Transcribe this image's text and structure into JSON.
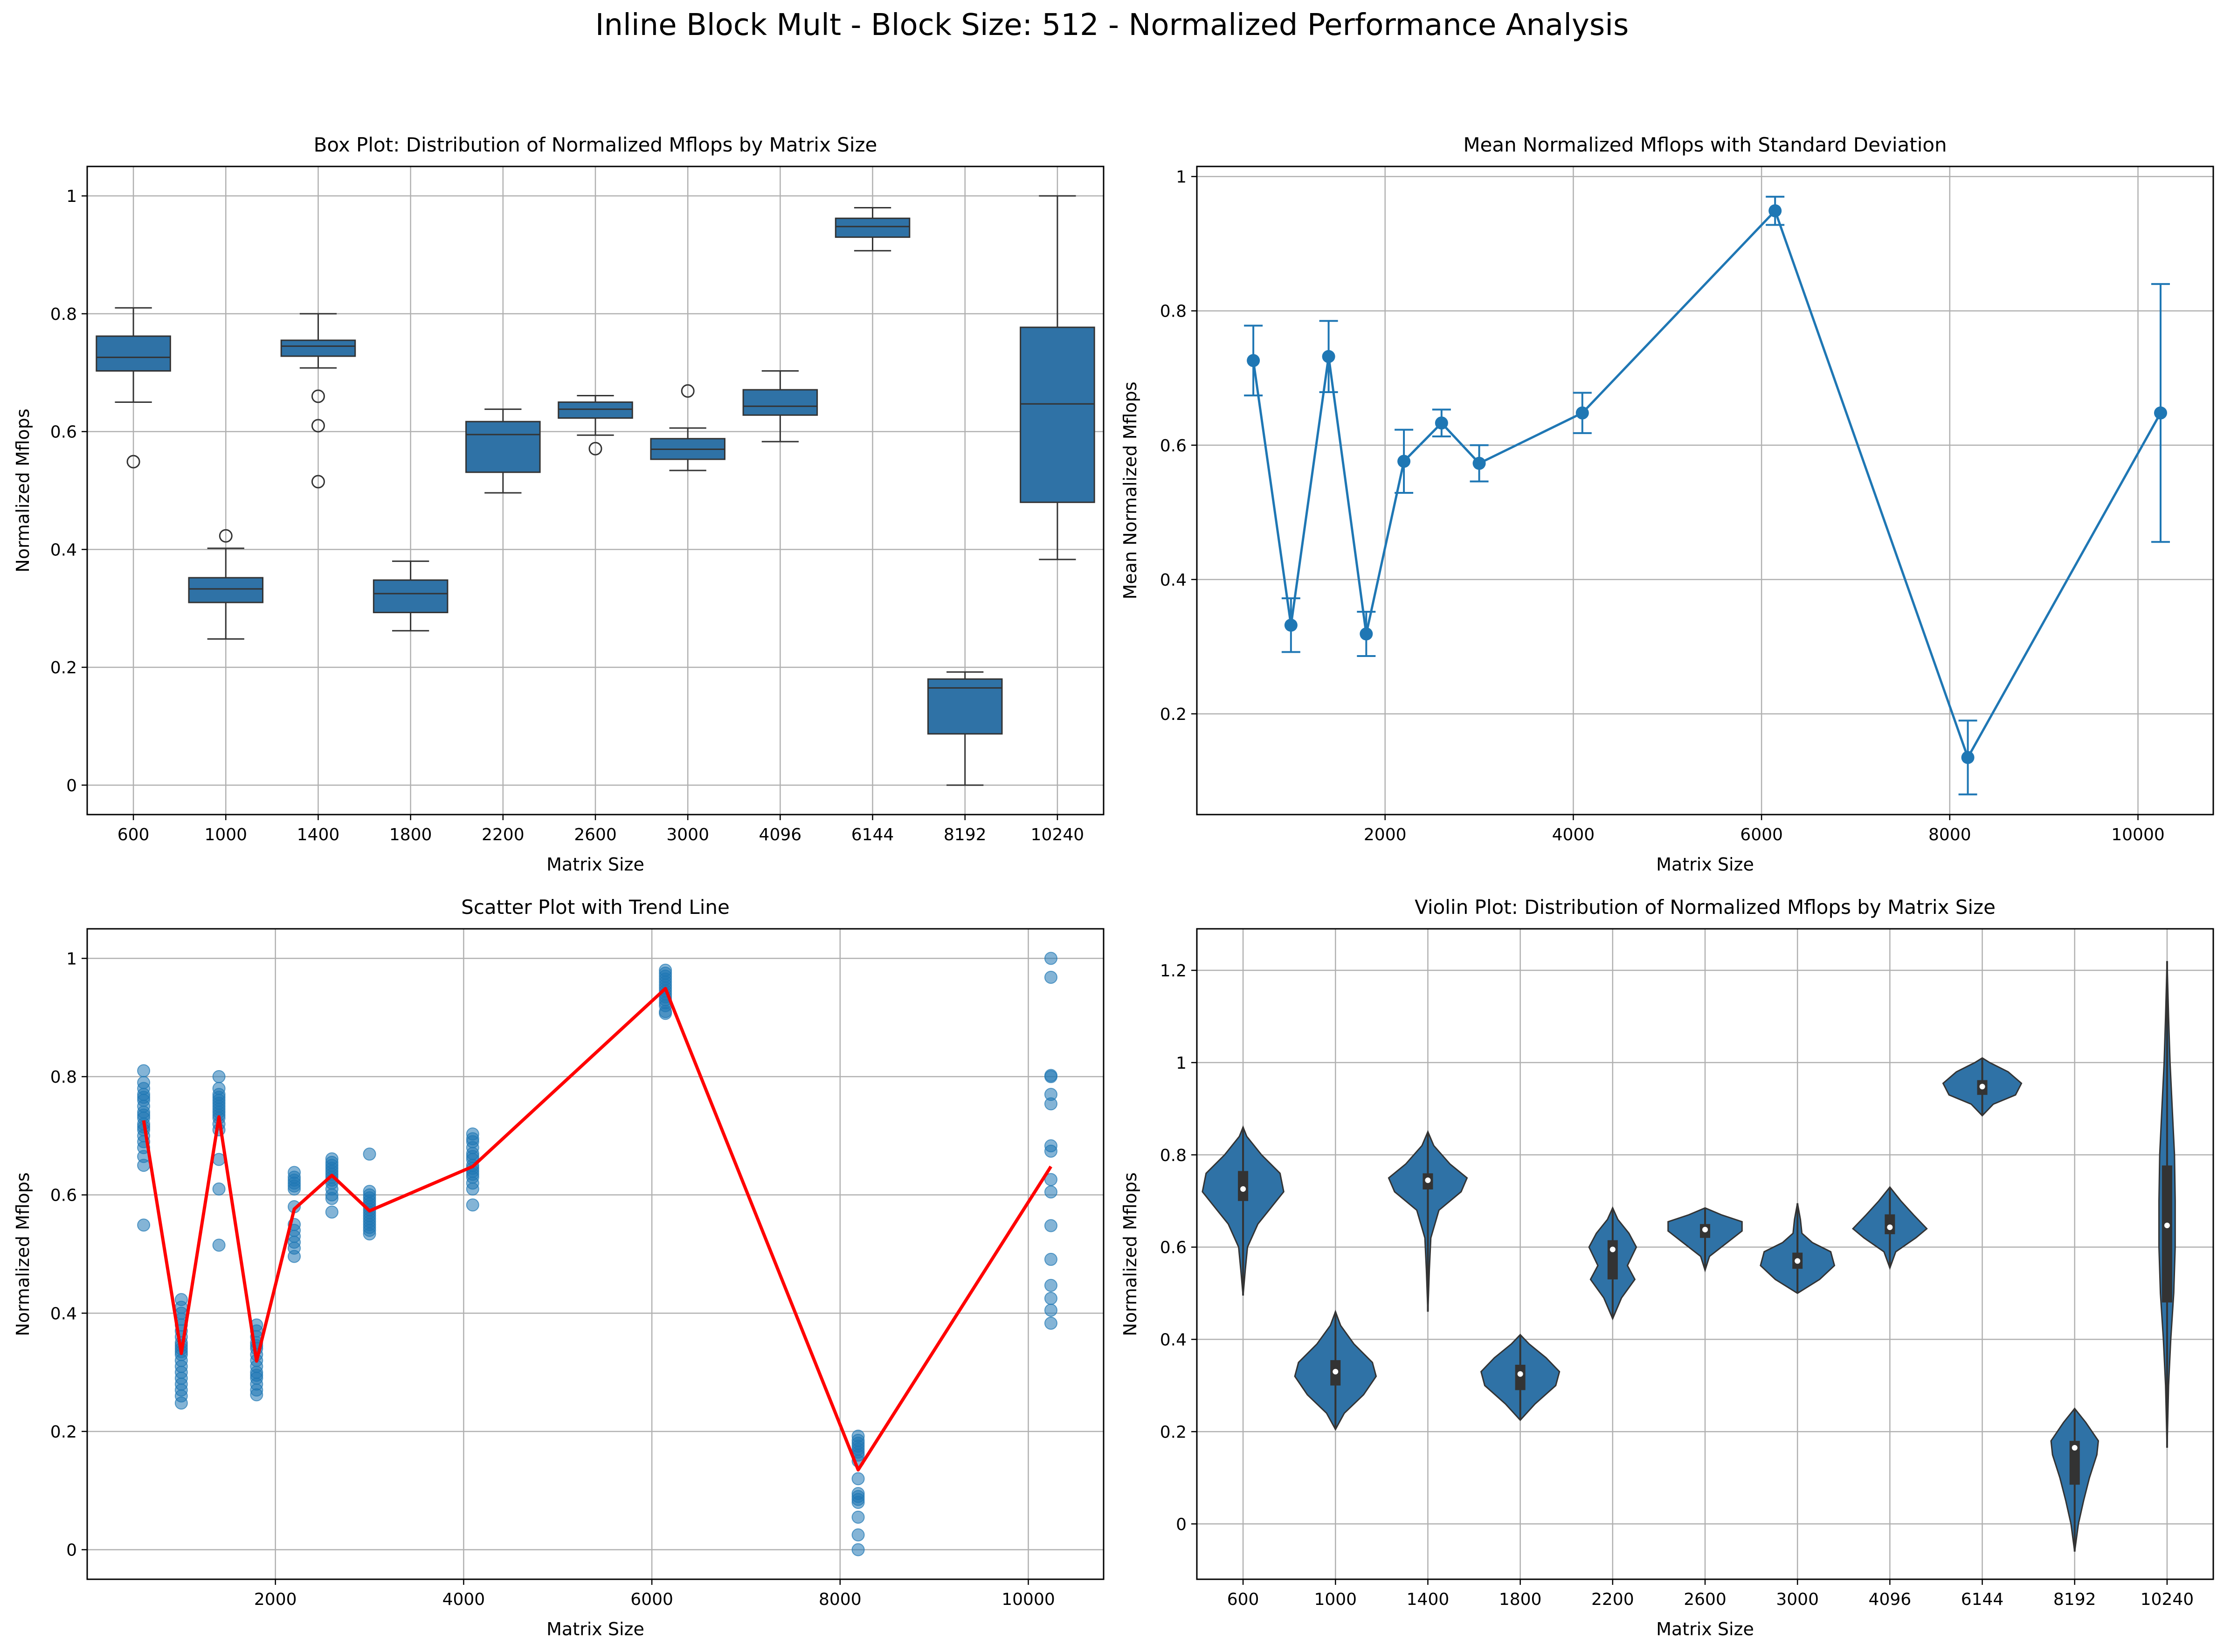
{
  "suptitle": "Inline Block Mult - Block Size: 512 - Normalized Performance Analysis",
  "colors": {
    "primary": "#2f72a6",
    "line": "#1f77b4",
    "trend": "#ff0000",
    "grid": "#b0b0b0",
    "dark": "#333333"
  },
  "chart_data": [
    {
      "type": "box",
      "title": "Box Plot: Distribution of Normalized Mflops by Matrix Size",
      "xlabel": "Matrix Size",
      "ylabel": "Normalized Mflops",
      "ylim": [
        -0.05,
        1.05
      ],
      "yticks": [
        0.0,
        0.2,
        0.4,
        0.6,
        0.8,
        1.0
      ],
      "grid": true,
      "categories": [
        "600",
        "1000",
        "1400",
        "1800",
        "2200",
        "2600",
        "3000",
        "4096",
        "6144",
        "8192",
        "10240"
      ],
      "boxes": [
        {
          "whislo": 0.65,
          "q1": 0.703,
          "med": 0.726,
          "q3": 0.762,
          "whishi": 0.81,
          "fliers": [
            0.549
          ]
        },
        {
          "whislo": 0.248,
          "q1": 0.31,
          "med": 0.333,
          "q3": 0.352,
          "whishi": 0.402,
          "fliers": [
            0.423
          ]
        },
        {
          "whislo": 0.708,
          "q1": 0.728,
          "med": 0.745,
          "q3": 0.755,
          "whishi": 0.8,
          "fliers": [
            0.66,
            0.61,
            0.515
          ]
        },
        {
          "whislo": 0.262,
          "q1": 0.293,
          "med": 0.325,
          "q3": 0.348,
          "whishi": 0.38,
          "fliers": []
        },
        {
          "whislo": 0.496,
          "q1": 0.531,
          "med": 0.595,
          "q3": 0.617,
          "whishi": 0.638,
          "fliers": []
        },
        {
          "whislo": 0.594,
          "q1": 0.623,
          "med": 0.638,
          "q3": 0.65,
          "whishi": 0.661,
          "fliers": [
            0.571
          ]
        },
        {
          "whislo": 0.534,
          "q1": 0.553,
          "med": 0.57,
          "q3": 0.588,
          "whishi": 0.606,
          "fliers": [
            0.669
          ]
        },
        {
          "whislo": 0.583,
          "q1": 0.628,
          "med": 0.643,
          "q3": 0.671,
          "whishi": 0.703,
          "fliers": []
        },
        {
          "whislo": 0.907,
          "q1": 0.93,
          "med": 0.948,
          "q3": 0.962,
          "whishi": 0.98,
          "fliers": []
        },
        {
          "whislo": 0.0,
          "q1": 0.087,
          "med": 0.165,
          "q3": 0.18,
          "whishi": 0.192,
          "fliers": []
        },
        {
          "whislo": 0.383,
          "q1": 0.48,
          "med": 0.647,
          "q3": 0.777,
          "whishi": 1.0,
          "fliers": []
        }
      ]
    },
    {
      "type": "line",
      "title": "Mean Normalized Mflops with Standard Deviation",
      "xlabel": "Matrix Size",
      "ylabel": "Mean Normalized Mflops",
      "xlim": [
        0,
        10800
      ],
      "ylim": [
        0.05,
        1.015
      ],
      "xticks": [
        2000,
        4000,
        6000,
        8000,
        10000
      ],
      "yticks": [
        0.2,
        0.4,
        0.6,
        0.8,
        1.0
      ],
      "grid": true,
      "x": [
        600,
        1000,
        1400,
        1800,
        2200,
        2600,
        3000,
        4096,
        6144,
        8192,
        10240
      ],
      "mean": [
        0.726,
        0.332,
        0.732,
        0.319,
        0.576,
        0.633,
        0.573,
        0.648,
        0.949,
        0.135,
        0.648
      ],
      "std": [
        0.052,
        0.04,
        0.053,
        0.033,
        0.047,
        0.02,
        0.027,
        0.03,
        0.021,
        0.055,
        0.192
      ]
    },
    {
      "type": "scatter",
      "title": "Scatter Plot with Trend Line",
      "xlabel": "Matrix Size",
      "ylabel": "Normalized Mflops",
      "xlim": [
        0,
        10800
      ],
      "ylim": [
        -0.05,
        1.05
      ],
      "xticks": [
        2000,
        4000,
        6000,
        8000,
        10000
      ],
      "yticks": [
        0.0,
        0.2,
        0.4,
        0.6,
        0.8,
        1.0
      ],
      "grid": true,
      "points": [
        {
          "x": 600,
          "y": [
            0.81,
            0.79,
            0.78,
            0.77,
            0.765,
            0.76,
            0.75,
            0.74,
            0.735,
            0.73,
            0.72,
            0.715,
            0.71,
            0.7,
            0.69,
            0.68,
            0.665,
            0.65,
            0.549
          ]
        },
        {
          "x": 1000,
          "y": [
            0.423,
            0.41,
            0.4,
            0.39,
            0.38,
            0.37,
            0.36,
            0.35,
            0.345,
            0.34,
            0.335,
            0.33,
            0.32,
            0.31,
            0.3,
            0.29,
            0.28,
            0.27,
            0.26,
            0.248
          ]
        },
        {
          "x": 1400,
          "y": [
            0.8,
            0.78,
            0.77,
            0.765,
            0.76,
            0.755,
            0.75,
            0.745,
            0.74,
            0.735,
            0.73,
            0.72,
            0.71,
            0.66,
            0.61,
            0.515
          ]
        },
        {
          "x": 1800,
          "y": [
            0.38,
            0.37,
            0.36,
            0.35,
            0.345,
            0.34,
            0.33,
            0.32,
            0.31,
            0.3,
            0.295,
            0.29,
            0.28,
            0.27,
            0.262
          ]
        },
        {
          "x": 2200,
          "y": [
            0.638,
            0.63,
            0.625,
            0.62,
            0.615,
            0.61,
            0.58,
            0.55,
            0.54,
            0.53,
            0.52,
            0.51,
            0.496
          ]
        },
        {
          "x": 2600,
          "y": [
            0.661,
            0.655,
            0.65,
            0.645,
            0.64,
            0.635,
            0.63,
            0.625,
            0.62,
            0.61,
            0.6,
            0.594,
            0.571
          ]
        },
        {
          "x": 3000,
          "y": [
            0.669,
            0.606,
            0.6,
            0.595,
            0.59,
            0.585,
            0.58,
            0.575,
            0.57,
            0.565,
            0.56,
            0.555,
            0.55,
            0.545,
            0.54,
            0.534
          ]
        },
        {
          "x": 4096,
          "y": [
            0.703,
            0.695,
            0.69,
            0.68,
            0.67,
            0.665,
            0.66,
            0.65,
            0.645,
            0.64,
            0.635,
            0.63,
            0.62,
            0.61,
            0.583
          ]
        },
        {
          "x": 6144,
          "y": [
            0.98,
            0.975,
            0.97,
            0.965,
            0.96,
            0.955,
            0.95,
            0.945,
            0.94,
            0.935,
            0.93,
            0.925,
            0.92,
            0.91,
            0.907
          ]
        },
        {
          "x": 8192,
          "y": [
            0.192,
            0.185,
            0.18,
            0.175,
            0.17,
            0.165,
            0.16,
            0.15,
            0.12,
            0.095,
            0.09,
            0.085,
            0.08,
            0.055,
            0.025,
            0.0
          ]
        },
        {
          "x": 10240,
          "y": [
            1.0,
            0.968,
            0.802,
            0.8,
            0.77,
            0.754,
            0.683,
            0.674,
            0.626,
            0.605,
            0.548,
            0.491,
            0.447,
            0.425,
            0.405,
            0.383
          ]
        }
      ],
      "trend": {
        "x": [
          600,
          1000,
          1400,
          1800,
          2200,
          2600,
          3000,
          4096,
          6144,
          8192,
          10240
        ],
        "y": [
          0.726,
          0.332,
          0.732,
          0.319,
          0.576,
          0.633,
          0.573,
          0.648,
          0.949,
          0.135,
          0.648
        ]
      }
    },
    {
      "type": "violin",
      "title": "Violin Plot: Distribution of Normalized Mflops by Matrix Size",
      "xlabel": "Matrix Size",
      "ylabel": "Normalized Mflops",
      "ylim": [
        -0.12,
        1.29
      ],
      "yticks": [
        0.0,
        0.2,
        0.4,
        0.6,
        0.8,
        1.0,
        1.2
      ],
      "grid": true,
      "categories": [
        "600",
        "1000",
        "1400",
        "1800",
        "2200",
        "2600",
        "3000",
        "4096",
        "6144",
        "8192",
        "10240"
      ],
      "violins": [
        {
          "min": 0.495,
          "max": 0.86,
          "q1": 0.7,
          "med": 0.726,
          "q3": 0.765,
          "prof": [
            [
              0.495,
              0.0
            ],
            [
              0.55,
              0.03
            ],
            [
              0.6,
              0.06
            ],
            [
              0.65,
              0.2
            ],
            [
              0.68,
              0.35
            ],
            [
              0.72,
              0.55
            ],
            [
              0.76,
              0.5
            ],
            [
              0.8,
              0.25
            ],
            [
              0.84,
              0.05
            ],
            [
              0.86,
              0.0
            ]
          ]
        },
        {
          "min": 0.205,
          "max": 0.46,
          "q1": 0.3,
          "med": 0.33,
          "q3": 0.355,
          "prof": [
            [
              0.205,
              0.0
            ],
            [
              0.24,
              0.12
            ],
            [
              0.28,
              0.38
            ],
            [
              0.32,
              0.55
            ],
            [
              0.35,
              0.5
            ],
            [
              0.39,
              0.25
            ],
            [
              0.43,
              0.07
            ],
            [
              0.46,
              0.0
            ]
          ]
        },
        {
          "min": 0.46,
          "max": 0.85,
          "q1": 0.725,
          "med": 0.745,
          "q3": 0.76,
          "prof": [
            [
              0.46,
              0.0
            ],
            [
              0.55,
              0.02
            ],
            [
              0.62,
              0.04
            ],
            [
              0.68,
              0.15
            ],
            [
              0.72,
              0.45
            ],
            [
              0.75,
              0.53
            ],
            [
              0.78,
              0.3
            ],
            [
              0.82,
              0.08
            ],
            [
              0.85,
              0.0
            ]
          ]
        },
        {
          "min": 0.225,
          "max": 0.41,
          "q1": 0.29,
          "med": 0.325,
          "q3": 0.345,
          "prof": [
            [
              0.225,
              0.0
            ],
            [
              0.26,
              0.2
            ],
            [
              0.3,
              0.48
            ],
            [
              0.33,
              0.53
            ],
            [
              0.36,
              0.35
            ],
            [
              0.39,
              0.12
            ],
            [
              0.41,
              0.0
            ]
          ]
        },
        {
          "min": 0.445,
          "max": 0.685,
          "q1": 0.53,
          "med": 0.595,
          "q3": 0.615,
          "prof": [
            [
              0.445,
              0.0
            ],
            [
              0.49,
              0.12
            ],
            [
              0.53,
              0.3
            ],
            [
              0.56,
              0.2
            ],
            [
              0.6,
              0.32
            ],
            [
              0.63,
              0.22
            ],
            [
              0.66,
              0.07
            ],
            [
              0.685,
              0.0
            ]
          ]
        },
        {
          "min": 0.55,
          "max": 0.685,
          "q1": 0.62,
          "med": 0.638,
          "q3": 0.65,
          "prof": [
            [
              0.55,
              0.0
            ],
            [
              0.58,
              0.06
            ],
            [
              0.61,
              0.3
            ],
            [
              0.635,
              0.5
            ],
            [
              0.655,
              0.5
            ],
            [
              0.67,
              0.22
            ],
            [
              0.685,
              0.0
            ]
          ]
        },
        {
          "min": 0.5,
          "max": 0.695,
          "q1": 0.553,
          "med": 0.57,
          "q3": 0.588,
          "prof": [
            [
              0.5,
              0.0
            ],
            [
              0.53,
              0.3
            ],
            [
              0.56,
              0.5
            ],
            [
              0.59,
              0.45
            ],
            [
              0.61,
              0.2
            ],
            [
              0.63,
              0.06
            ],
            [
              0.66,
              0.04
            ],
            [
              0.695,
              0.0
            ]
          ]
        },
        {
          "min": 0.555,
          "max": 0.73,
          "q1": 0.628,
          "med": 0.643,
          "q3": 0.671,
          "prof": [
            [
              0.555,
              0.0
            ],
            [
              0.59,
              0.08
            ],
            [
              0.62,
              0.35
            ],
            [
              0.64,
              0.5
            ],
            [
              0.67,
              0.32
            ],
            [
              0.7,
              0.15
            ],
            [
              0.73,
              0.0
            ]
          ]
        },
        {
          "min": 0.885,
          "max": 1.01,
          "q1": 0.93,
          "med": 0.948,
          "q3": 0.962,
          "prof": [
            [
              0.885,
              0.0
            ],
            [
              0.91,
              0.15
            ],
            [
              0.93,
              0.45
            ],
            [
              0.955,
              0.53
            ],
            [
              0.98,
              0.35
            ],
            [
              1.0,
              0.1
            ],
            [
              1.01,
              0.0
            ]
          ]
        },
        {
          "min": -0.06,
          "max": 0.25,
          "q1": 0.085,
          "med": 0.165,
          "q3": 0.18,
          "prof": [
            [
              -0.06,
              0.0
            ],
            [
              0.0,
              0.05
            ],
            [
              0.05,
              0.12
            ],
            [
              0.1,
              0.2
            ],
            [
              0.15,
              0.3
            ],
            [
              0.18,
              0.32
            ],
            [
              0.22,
              0.15
            ],
            [
              0.25,
              0.0
            ]
          ]
        },
        {
          "min": 0.165,
          "max": 1.22,
          "q1": 0.48,
          "med": 0.647,
          "q3": 0.777,
          "prof": [
            [
              0.165,
              0.0
            ],
            [
              0.3,
              0.02
            ],
            [
              0.4,
              0.05
            ],
            [
              0.5,
              0.09
            ],
            [
              0.6,
              0.11
            ],
            [
              0.7,
              0.11
            ],
            [
              0.8,
              0.1
            ],
            [
              0.9,
              0.07
            ],
            [
              1.0,
              0.04
            ],
            [
              1.1,
              0.02
            ],
            [
              1.22,
              0.0
            ]
          ]
        }
      ]
    }
  ]
}
